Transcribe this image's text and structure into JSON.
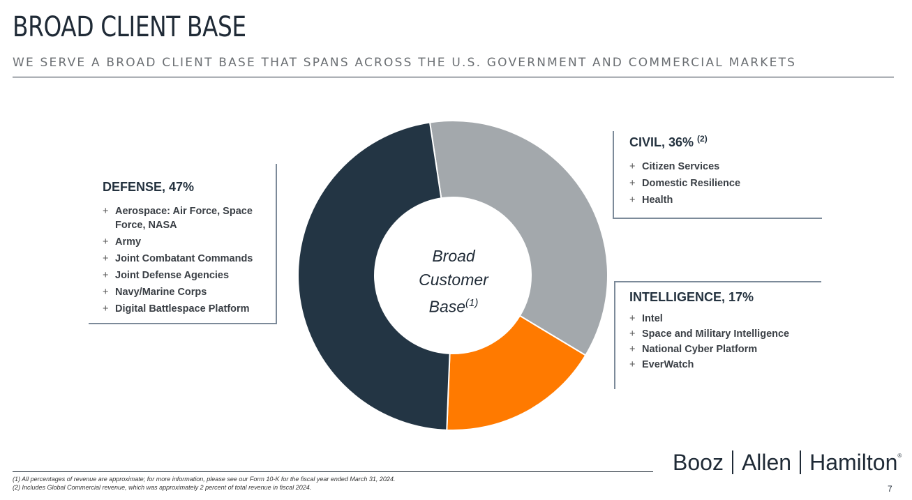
{
  "header": {
    "title": "BROAD CLIENT BASE",
    "subtitle": "WE SERVE A BROAD CLIENT BASE THAT SPANS ACROSS THE U.S. GOVERNMENT AND COMMERCIAL MARKETS"
  },
  "chart_data": {
    "type": "pie",
    "donut": true,
    "title": "",
    "center_label": {
      "line1": "Broad",
      "line2": "Customer",
      "line3": "Base",
      "note": "(1)"
    },
    "series": [
      {
        "name": "DEFENSE",
        "value": 47,
        "color": "#233544"
      },
      {
        "name": "CIVIL",
        "value": 36,
        "color": "#a3a8ac"
      },
      {
        "name": "INTELLIGENCE",
        "value": 17,
        "color": "#ff7a00"
      }
    ]
  },
  "segments": {
    "defense": {
      "heading": "DEFENSE, 47%",
      "items": [
        "Aerospace: Air Force, Space Force, NASA",
        "Army",
        "Joint Combatant Commands",
        "Joint Defense Agencies",
        "Navy/Marine Corps",
        "Digital Battlespace Platform"
      ]
    },
    "civil": {
      "heading": "CIVIL, 36%",
      "note": "(2)",
      "items": [
        "Citizen Services",
        "Domestic Resilience",
        "Health"
      ]
    },
    "intelligence": {
      "heading": "INTELLIGENCE, 17%",
      "items": [
        "Intel",
        "Space and Military Intelligence",
        "National Cyber Platform",
        "EverWatch"
      ]
    }
  },
  "bullet_symbol": "+",
  "footnotes": {
    "fn1": "(1) All percentages of revenue are approximate; for more information, please see our Form 10-K for the fiscal year ended March 31, 2024.",
    "fn2": "(2) Includes Global Commercial revenue, which was approximately 2 percent of total revenue in fiscal 2024."
  },
  "logo": {
    "part1": "Booz",
    "part2": "Allen",
    "part3": "Hamilton",
    "mark": "®"
  },
  "page_number": "7"
}
